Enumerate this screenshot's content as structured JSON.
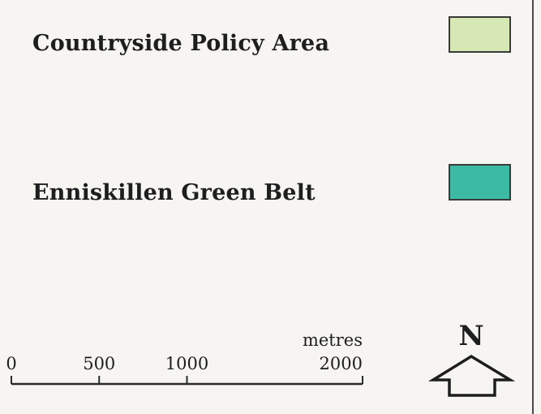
{
  "legend": {
    "items": [
      {
        "label": "Countryside Policy Area",
        "color": "#d6e8b3"
      },
      {
        "label": "Enniskillen Green Belt",
        "color": "#3dbaa4"
      }
    ]
  },
  "scale_bar": {
    "unit": "metres",
    "ticks": [
      {
        "value": 0,
        "label": "0"
      },
      {
        "value": 500,
        "label": "500"
      },
      {
        "value": 1000,
        "label": "1000"
      },
      {
        "value": 2000,
        "label": "2000"
      }
    ],
    "max_value": 2000
  },
  "north_arrow": {
    "label": "N",
    "icon": "north-arrow-icon"
  }
}
